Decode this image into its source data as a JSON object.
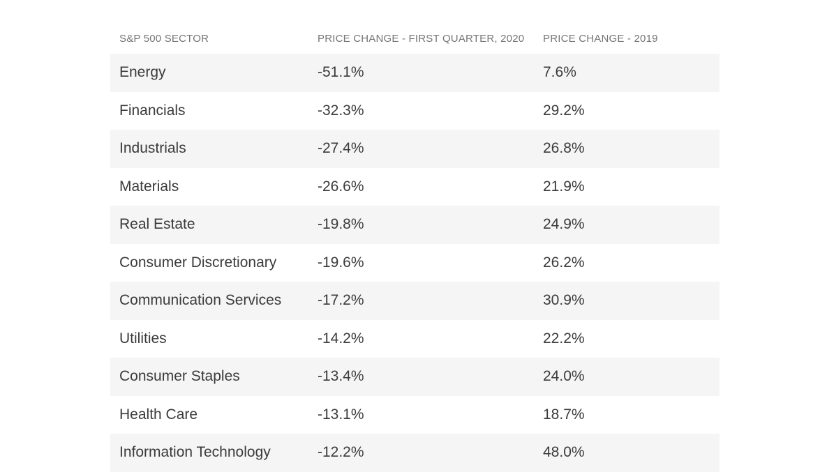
{
  "page": {
    "background_color": "#ffffff",
    "stripe_color": "#f5f5f5",
    "header_text_color": "#757575",
    "cell_text_color": "#3b3b3b"
  },
  "table": {
    "columns": [
      {
        "label": "S&P 500 SECTOR"
      },
      {
        "label": "PRICE CHANGE - FIRST QUARTER, 2020"
      },
      {
        "label": "PRICE CHANGE - 2019"
      }
    ],
    "rows": [
      {
        "sector": "Energy",
        "q1_2020": "-51.1%",
        "y2019": "7.6%"
      },
      {
        "sector": "Financials",
        "q1_2020": "-32.3%",
        "y2019": "29.2%"
      },
      {
        "sector": "Industrials",
        "q1_2020": "-27.4%",
        "y2019": "26.8%"
      },
      {
        "sector": "Materials",
        "q1_2020": "-26.6%",
        "y2019": "21.9%"
      },
      {
        "sector": "Real Estate",
        "q1_2020": "-19.8%",
        "y2019": "24.9%"
      },
      {
        "sector": "Consumer Discretionary",
        "q1_2020": "-19.6%",
        "y2019": "26.2%"
      },
      {
        "sector": "Communication Services",
        "q1_2020": "-17.2%",
        "y2019": "30.9%"
      },
      {
        "sector": "Utilities",
        "q1_2020": "-14.2%",
        "y2019": "22.2%"
      },
      {
        "sector": "Consumer Staples",
        "q1_2020": "-13.4%",
        "y2019": "24.0%"
      },
      {
        "sector": "Health Care",
        "q1_2020": "-13.1%",
        "y2019": "18.7%"
      },
      {
        "sector": "Information Technology",
        "q1_2020": "-12.2%",
        "y2019": "48.0%"
      }
    ]
  },
  "chart_data": {
    "type": "table",
    "title": "",
    "categories": [
      "Energy",
      "Financials",
      "Industrials",
      "Materials",
      "Real Estate",
      "Consumer Discretionary",
      "Communication Services",
      "Utilities",
      "Consumer Staples",
      "Health Care",
      "Information Technology"
    ],
    "series": [
      {
        "name": "PRICE CHANGE - FIRST QUARTER, 2020",
        "values": [
          -51.1,
          -32.3,
          -27.4,
          -26.6,
          -19.8,
          -19.6,
          -17.2,
          -14.2,
          -13.4,
          -13.1,
          -12.2
        ]
      },
      {
        "name": "PRICE CHANGE - 2019",
        "values": [
          7.6,
          29.2,
          26.8,
          21.9,
          24.9,
          26.2,
          30.9,
          22.2,
          24.0,
          18.7,
          48.0
        ]
      }
    ],
    "layout_hints": {
      "first_column_header": "S&P 500 SECTOR",
      "striped_rows": true,
      "stripe_starts_on_first_data_row": true,
      "last_row_clipped_at_bottom": true
    }
  }
}
